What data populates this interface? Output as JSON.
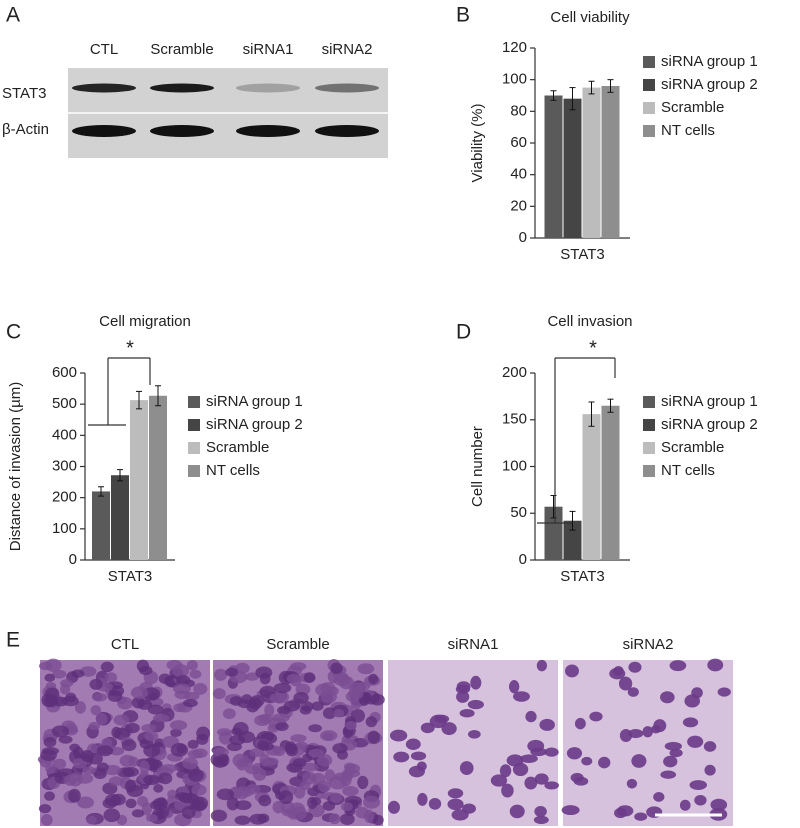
{
  "panel_labels": [
    "A",
    "B",
    "C",
    "D",
    "E"
  ],
  "blot": {
    "lanes": [
      "CTL",
      "Scramble",
      "siRNA1",
      "siRNA2"
    ],
    "rows": [
      "STAT3",
      "β-Actin"
    ]
  },
  "chart_data": [
    {
      "type": "bar",
      "title": "Cell viability",
      "ylabel": "Viability (%)",
      "categories": [
        "STAT3"
      ],
      "series": [
        {
          "name": "siRNA group 1",
          "color": "#5a5a5a",
          "values": [
            90
          ],
          "errors": [
            3
          ]
        },
        {
          "name": "siRNA group 2",
          "color": "#454545",
          "values": [
            88
          ],
          "errors": [
            7
          ]
        },
        {
          "name": "Scramble",
          "color": "#bcbcbc",
          "values": [
            95
          ],
          "errors": [
            4
          ]
        },
        {
          "name": "NT cells",
          "color": "#8e8e8e",
          "values": [
            96
          ],
          "errors": [
            4
          ]
        }
      ],
      "ylim": [
        0,
        120
      ],
      "yticks": [
        0,
        20,
        40,
        60,
        80,
        100,
        120
      ]
    },
    {
      "type": "bar",
      "title": "Cell migration",
      "ylabel": "Distance of invasion (µm)",
      "categories": [
        "STAT3"
      ],
      "annotation": "*",
      "series": [
        {
          "name": "siRNA group 1",
          "color": "#5a5a5a",
          "values": [
            220
          ],
          "errors": [
            15
          ]
        },
        {
          "name": "siRNA group 2",
          "color": "#454545",
          "values": [
            272
          ],
          "errors": [
            18
          ]
        },
        {
          "name": "Scramble",
          "color": "#bcbcbc",
          "values": [
            513
          ],
          "errors": [
            28
          ]
        },
        {
          "name": "NT cells",
          "color": "#8e8e8e",
          "values": [
            527
          ],
          "errors": [
            32
          ]
        }
      ],
      "ylim": [
        0,
        600
      ],
      "yticks": [
        0,
        100,
        200,
        300,
        400,
        500,
        600
      ]
    },
    {
      "type": "bar",
      "title": "Cell invasion",
      "ylabel": "Cell number",
      "categories": [
        "STAT3"
      ],
      "annotation": "*",
      "series": [
        {
          "name": "siRNA group 1",
          "color": "#5a5a5a",
          "values": [
            57
          ],
          "errors": [
            12
          ]
        },
        {
          "name": "siRNA group 2",
          "color": "#454545",
          "values": [
            42
          ],
          "errors": [
            10
          ]
        },
        {
          "name": "Scramble",
          "color": "#bcbcbc",
          "values": [
            156
          ],
          "errors": [
            13
          ]
        },
        {
          "name": "NT cells",
          "color": "#8e8e8e",
          "values": [
            165
          ],
          "errors": [
            7
          ]
        }
      ],
      "ylim": [
        0,
        200
      ],
      "yticks": [
        0,
        50,
        100,
        150,
        200
      ]
    }
  ],
  "micrographs": {
    "labels": [
      "CTL",
      "Scramble",
      "siRNA1",
      "siRNA2"
    ]
  }
}
